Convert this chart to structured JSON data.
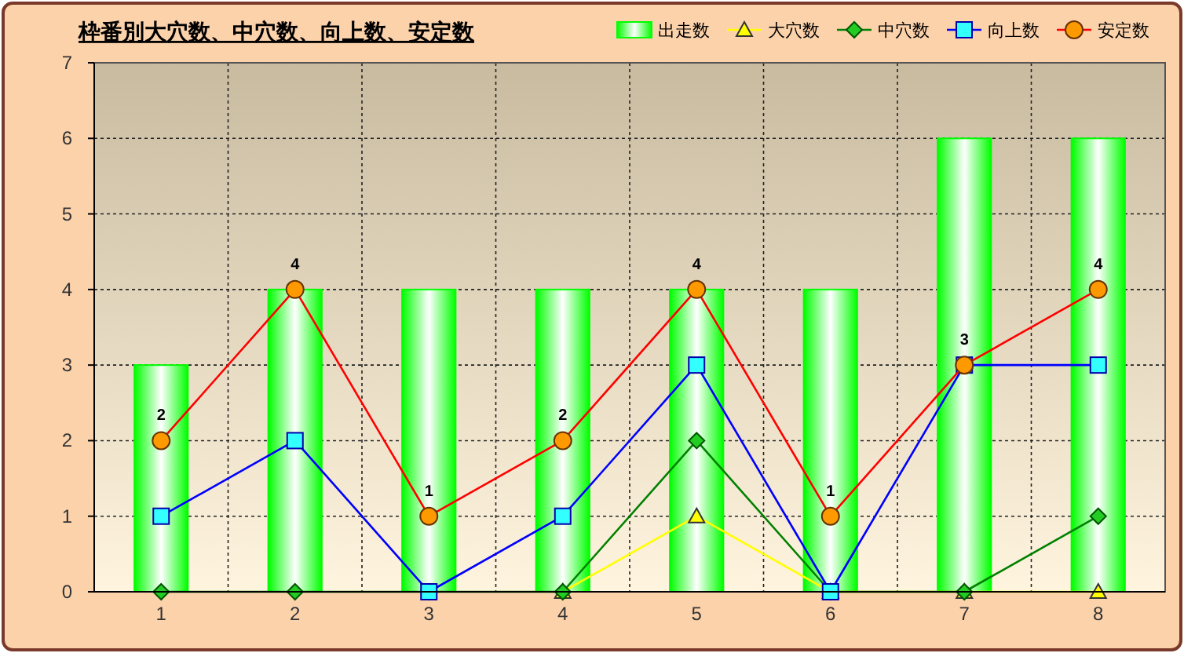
{
  "chart_data": {
    "type": "bar",
    "title": "枠番別大穴数、中穴数、向上数、安定数",
    "categories": [
      "1",
      "2",
      "3",
      "4",
      "5",
      "6",
      "7",
      "8"
    ],
    "series": [
      {
        "name": "出走数",
        "color": "#00ff00",
        "values": [
          3,
          4,
          4,
          4,
          4,
          4,
          6,
          6
        ]
      },
      {
        "name": "大穴数",
        "type": "line",
        "color": "#ffff00",
        "marker": "triangle",
        "values": [
          null,
          null,
          null,
          0,
          1,
          0,
          0,
          0
        ]
      },
      {
        "name": "中穴数",
        "type": "line",
        "color": "#008000",
        "marker": "diamond",
        "values": [
          0,
          0,
          0,
          0,
          2,
          0,
          0,
          1
        ]
      },
      {
        "name": "向上数",
        "type": "line",
        "color": "#0000ff",
        "marker": "square",
        "values": [
          1,
          2,
          0,
          1,
          3,
          0,
          3,
          3
        ]
      },
      {
        "name": "安定数",
        "type": "line",
        "color": "#ff0000",
        "marker": "circle",
        "values": [
          2,
          4,
          1,
          2,
          4,
          1,
          3,
          4
        ],
        "value_labels": [
          "2",
          "4",
          "1",
          "2",
          "4",
          "1",
          "3",
          "4"
        ]
      }
    ],
    "ylim": [
      0,
      7
    ],
    "yticks": [
      0,
      1,
      2,
      3,
      4,
      5,
      6,
      7
    ],
    "grid": true,
    "legend": "top right"
  }
}
